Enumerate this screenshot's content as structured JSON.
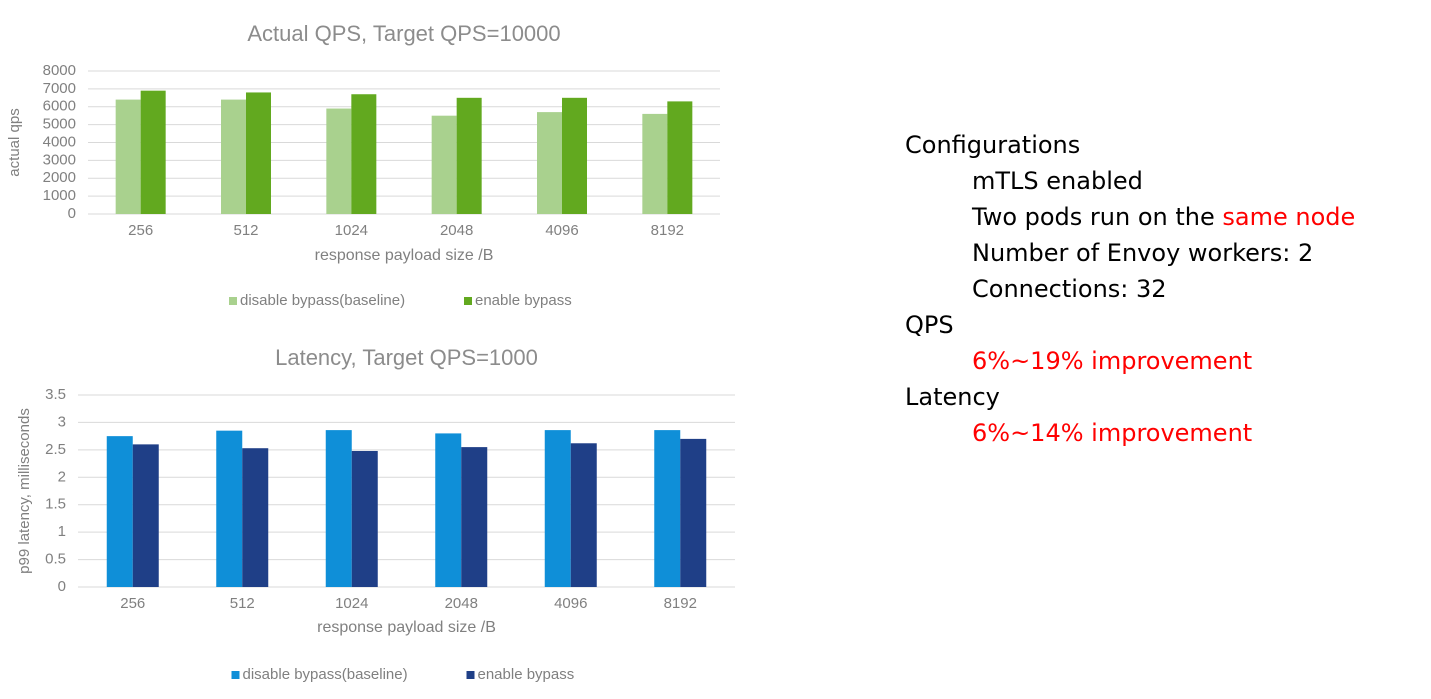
{
  "chart_data": [
    {
      "type": "bar",
      "title": "Actual QPS, Target QPS=10000",
      "x_label": "response payload size /B",
      "y_label": "actual qps",
      "categories": [
        "256",
        "512",
        "1024",
        "2048",
        "4096",
        "8192"
      ],
      "series": [
        {
          "name": "disable bypass(baseline)",
          "color": "#a9d18e",
          "values": [
            6400,
            6400,
            5900,
            5500,
            5700,
            5600
          ]
        },
        {
          "name": "enable bypass",
          "color": "#62a91f",
          "values": [
            6900,
            6800,
            6700,
            6500,
            6500,
            6300
          ]
        }
      ],
      "ylim": [
        0,
        8000
      ],
      "yticks": [
        0,
        1000,
        2000,
        3000,
        4000,
        5000,
        6000,
        7000,
        8000
      ],
      "grid": true,
      "legend": "bottom"
    },
    {
      "type": "bar",
      "title": "Latency, Target QPS=1000",
      "x_label": "response payload size /B",
      "y_label": "p99 latency, milliseconds",
      "categories": [
        "256",
        "512",
        "1024",
        "2048",
        "4096",
        "8192"
      ],
      "series": [
        {
          "name": "disable bypass(baseline)",
          "color": "#0f8fd8",
          "values": [
            2.75,
            2.85,
            2.86,
            2.8,
            2.86,
            2.86
          ]
        },
        {
          "name": "enable bypass",
          "color": "#1f3f87",
          "values": [
            2.6,
            2.53,
            2.48,
            2.55,
            2.62,
            2.7
          ]
        }
      ],
      "ylim": [
        0,
        3.5
      ],
      "yticks": [
        0,
        0.5,
        1,
        1.5,
        2,
        2.5,
        3,
        3.5
      ],
      "grid": true,
      "legend": "bottom"
    }
  ],
  "notes": [
    {
      "heading": "Configurations",
      "items": [
        [
          {
            "text": "mTLS enabled"
          }
        ],
        [
          {
            "text": "Two pods run on the "
          },
          {
            "text": "same node",
            "color": "#ff0000"
          }
        ],
        [
          {
            "text": "Number of Envoy workers: 2"
          }
        ],
        [
          {
            "text": "Connections: 32"
          }
        ]
      ]
    },
    {
      "heading": "QPS",
      "items": [
        [
          {
            "text": "6%~19% improvement",
            "color": "#ff0000"
          }
        ]
      ]
    },
    {
      "heading": "Latency",
      "items": [
        [
          {
            "text": "6%~14% improvement",
            "color": "#ff0000"
          }
        ]
      ]
    }
  ]
}
